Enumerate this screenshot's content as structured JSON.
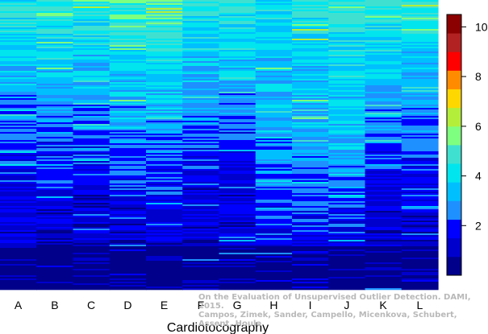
{
  "chart_data": {
    "type": "heatmap",
    "title": "",
    "xlabel": "Cardiotocography",
    "ylabel": "",
    "categories": [
      "A",
      "B",
      "C",
      "D",
      "E",
      "F",
      "G",
      "H",
      "I",
      "J",
      "K",
      "L"
    ],
    "value_range": [
      0,
      10.5
    ],
    "colorbar": {
      "ticks": [
        2,
        4,
        6,
        8,
        10
      ],
      "colors": [
        "#00008b",
        "#0000cd",
        "#0000ff",
        "#1e90ff",
        "#00bfff",
        "#00e5ee",
        "#40e0d0",
        "#7fff7f",
        "#b3ee3a",
        "#ffd700",
        "#ff8c00",
        "#ff0000",
        "#b22222",
        "#8b0000"
      ]
    },
    "columns_approx": [
      {
        "label": "A",
        "top_value": 4.5,
        "mid_value": 2.0,
        "bottom_value": 0.5
      },
      {
        "label": "B",
        "top_value": 4.8,
        "mid_value": 2.2,
        "bottom_value": 0.5
      },
      {
        "label": "C",
        "top_value": 4.8,
        "mid_value": 2.0,
        "bottom_value": 0.5
      },
      {
        "label": "D",
        "top_value": 5.0,
        "mid_value": 2.3,
        "bottom_value": 0.5
      },
      {
        "label": "E",
        "top_value": 5.3,
        "mid_value": 2.4,
        "bottom_value": 0.5
      },
      {
        "label": "F",
        "top_value": 4.5,
        "mid_value": 2.0,
        "bottom_value": 0.5
      },
      {
        "label": "G",
        "top_value": 4.6,
        "mid_value": 2.0,
        "bottom_value": 0.5
      },
      {
        "label": "H",
        "top_value": 4.2,
        "mid_value": 2.8,
        "bottom_value": 1.2
      },
      {
        "label": "I",
        "top_value": 4.4,
        "mid_value": 3.0,
        "bottom_value": 0.8
      },
      {
        "label": "J",
        "top_value": 4.6,
        "mid_value": 3.2,
        "bottom_value": 0.8
      },
      {
        "label": "K",
        "top_value": 4.8,
        "mid_value": 2.2,
        "bottom_value": 0.5
      },
      {
        "label": "L",
        "top_value": 4.6,
        "mid_value": 2.1,
        "bottom_value": 0.5
      }
    ],
    "legend": "right",
    "grid": false
  },
  "credit": "On the Evaluation of Unsupervised Outlier Detection. DAMI, 2015.\nCampos, Zimek, Sander, Campello, Micenkova, Schubert, Assent, Houle"
}
